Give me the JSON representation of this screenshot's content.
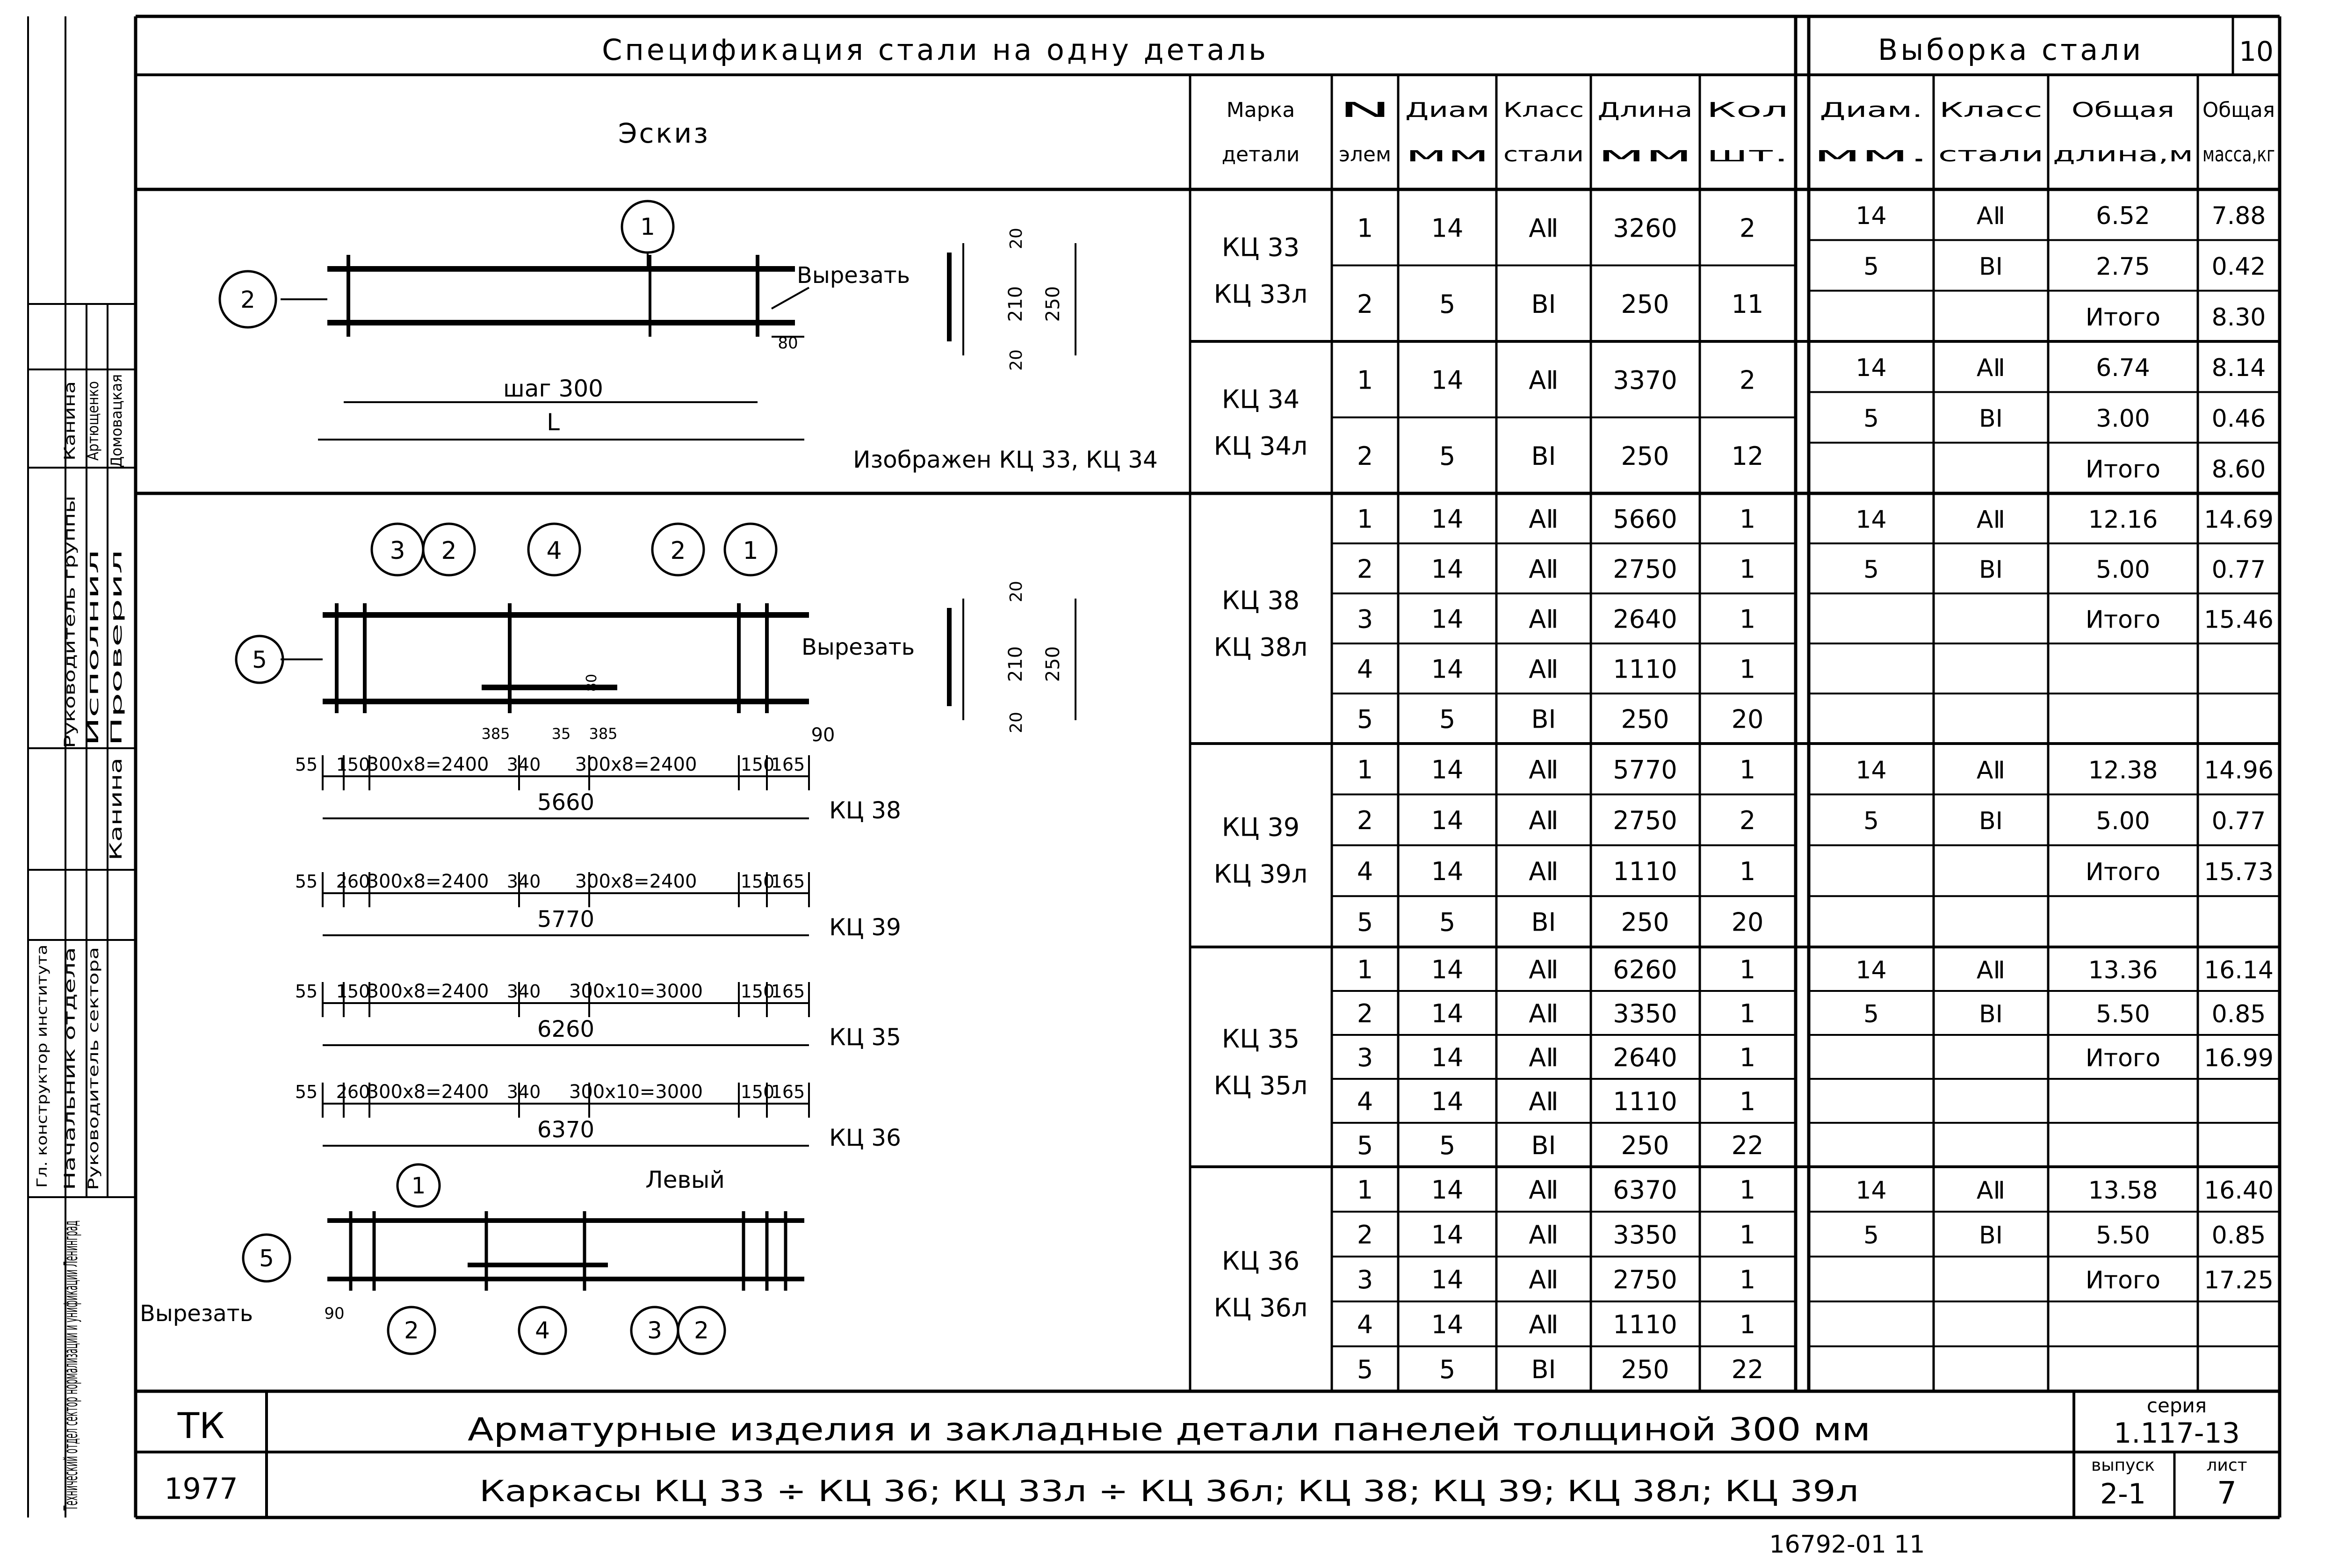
{
  "header": {
    "spec_title": "Спецификация стали на одну деталь",
    "selection_title": "Выборка стали",
    "page_corner": "10",
    "sketch_label": "Эскиз",
    "cols_spec": [
      [
        "Марка",
        "детали"
      ],
      [
        "N",
        "элем"
      ],
      [
        "Диам",
        "мм"
      ],
      [
        "Класс",
        "стали"
      ],
      [
        "Длина",
        "мм"
      ],
      [
        "Кол",
        "шт."
      ]
    ],
    "cols_sel": [
      [
        "Диам.",
        "мм."
      ],
      [
        "Класс",
        "стали"
      ],
      [
        "Общая",
        "длина,м"
      ],
      [
        "Общая",
        "масса,кг"
      ]
    ]
  },
  "groups": [
    {
      "marks": [
        "КЦ 33",
        "КЦ 33л"
      ],
      "rows": [
        [
          "1",
          "14",
          "АⅡ",
          "3260",
          "2"
        ],
        [
          "2",
          "5",
          "ВⅠ",
          "250",
          "11"
        ]
      ],
      "sel": [
        [
          "14",
          "АⅡ",
          "6.52",
          "7.88"
        ],
        [
          "5",
          "ВⅠ",
          "2.75",
          "0.42"
        ],
        [
          "",
          "",
          "Итого",
          "8.30"
        ]
      ]
    },
    {
      "marks": [
        "КЦ 34",
        "КЦ 34л"
      ],
      "rows": [
        [
          "1",
          "14",
          "АⅡ",
          "3370",
          "2"
        ],
        [
          "2",
          "5",
          "ВⅠ",
          "250",
          "12"
        ]
      ],
      "sel": [
        [
          "14",
          "АⅡ",
          "6.74",
          "8.14"
        ],
        [
          "5",
          "ВⅠ",
          "3.00",
          "0.46"
        ],
        [
          "",
          "",
          "Итого",
          "8.60"
        ]
      ]
    },
    {
      "marks": [
        "КЦ 38",
        "КЦ 38л"
      ],
      "rows": [
        [
          "1",
          "14",
          "АⅡ",
          "5660",
          "1"
        ],
        [
          "2",
          "14",
          "АⅡ",
          "2750",
          "1"
        ],
        [
          "3",
          "14",
          "АⅡ",
          "2640",
          "1"
        ],
        [
          "4",
          "14",
          "АⅡ",
          "1110",
          "1"
        ],
        [
          "5",
          "5",
          "ВⅠ",
          "250",
          "20"
        ]
      ],
      "sel": [
        [
          "14",
          "АⅡ",
          "12.16",
          "14.69"
        ],
        [
          "5",
          "ВⅠ",
          "5.00",
          "0.77"
        ],
        [
          "",
          "",
          "Итого",
          "15.46"
        ]
      ]
    },
    {
      "marks": [
        "КЦ 39",
        "КЦ 39л"
      ],
      "rows": [
        [
          "1",
          "14",
          "АⅡ",
          "5770",
          "1"
        ],
        [
          "2",
          "14",
          "АⅡ",
          "2750",
          "2"
        ],
        [
          "4",
          "14",
          "АⅡ",
          "1110",
          "1"
        ],
        [
          "5",
          "5",
          "ВⅠ",
          "250",
          "20"
        ]
      ],
      "sel": [
        [
          "14",
          "АⅡ",
          "12.38",
          "14.96"
        ],
        [
          "5",
          "ВⅠ",
          "5.00",
          "0.77"
        ],
        [
          "",
          "",
          "Итого",
          "15.73"
        ]
      ]
    },
    {
      "marks": [
        "КЦ 35",
        "КЦ 35л"
      ],
      "rows": [
        [
          "1",
          "14",
          "АⅡ",
          "6260",
          "1"
        ],
        [
          "2",
          "14",
          "АⅡ",
          "3350",
          "1"
        ],
        [
          "3",
          "14",
          "АⅡ",
          "2640",
          "1"
        ],
        [
          "4",
          "14",
          "АⅡ",
          "1110",
          "1"
        ],
        [
          "5",
          "5",
          "ВⅠ",
          "250",
          "22"
        ]
      ],
      "sel": [
        [
          "14",
          "АⅡ",
          "13.36",
          "16.14"
        ],
        [
          "5",
          "ВⅠ",
          "5.50",
          "0.85"
        ],
        [
          "",
          "",
          "Итого",
          "16.99"
        ]
      ]
    },
    {
      "marks": [
        "КЦ 36",
        "КЦ 36л"
      ],
      "rows": [
        [
          "1",
          "14",
          "АⅡ",
          "6370",
          "1"
        ],
        [
          "2",
          "14",
          "АⅡ",
          "3350",
          "1"
        ],
        [
          "3",
          "14",
          "АⅡ",
          "2750",
          "1"
        ],
        [
          "4",
          "14",
          "АⅡ",
          "1110",
          "1"
        ],
        [
          "5",
          "5",
          "ВⅠ",
          "250",
          "22"
        ]
      ],
      "sel": [
        [
          "14",
          "АⅡ",
          "13.58",
          "16.40"
        ],
        [
          "5",
          "ВⅠ",
          "5.50",
          "0.85"
        ],
        [
          "",
          "",
          "Итого",
          "17.25"
        ]
      ]
    }
  ],
  "sketch": {
    "cut": "Вырезать",
    "step": "шаг 300",
    "length": "L",
    "shown": "Изображен КЦ 33, КЦ 34",
    "left": "Левый",
    "dim20": "20",
    "dim210": "210",
    "dim250": "250",
    "dim80": "80",
    "dim90": "90",
    "dim385": "385",
    "dim35": "35",
    "rows": [
      {
        "parts": [
          "55",
          "150",
          "300x8=2400",
          "340",
          "300x8=2400",
          "150",
          "165"
        ],
        "total": "5660",
        "mark": "КЦ 38"
      },
      {
        "parts": [
          "55",
          "260",
          "300x8=2400",
          "340",
          "300x8=2400",
          "150",
          "165"
        ],
        "total": "5770",
        "mark": "КЦ 39"
      },
      {
        "parts": [
          "55",
          "150",
          "300x8=2400",
          "340",
          "300x10=3000",
          "150",
          "165"
        ],
        "total": "6260",
        "mark": "КЦ 35"
      },
      {
        "parts": [
          "55",
          "260",
          "300x8=2400",
          "340",
          "300x10=3000",
          "150",
          "165"
        ],
        "total": "6370",
        "mark": "КЦ 36"
      }
    ]
  },
  "stamp": {
    "tk": "ТК",
    "year": "1977",
    "title": "Арматурные изделия и закладные детали панелей толщиной 300 мм",
    "subtitle": "Каркасы КЦ 33 ÷ КЦ 36; КЦ 33л ÷ КЦ 36л; КЦ 38; КЦ 39; КЦ 38л; КЦ 39л",
    "series_label": "серия",
    "series": "1.117-13",
    "issue_label": "выпуск",
    "issue": "2-1",
    "sheet_label": "лист",
    "sheet": "7",
    "footer": "16792-01   11"
  },
  "side": {
    "org": "Технический отдел сектор нормализации и унификации Ленинград",
    "roles": [
      "Гл. конструктор института",
      "Начальник отдела",
      "Руководитель сектора",
      "Руководитель группы",
      "Исполнил",
      "Проверил"
    ],
    "names": [
      "Канина",
      "Артющенко",
      "Домовацкая",
      "Канина"
    ]
  }
}
